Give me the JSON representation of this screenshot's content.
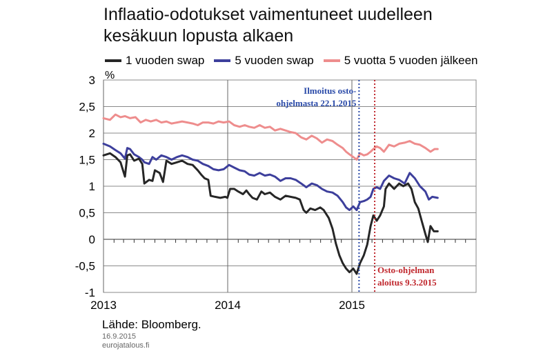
{
  "header": {
    "title_line1": "Inflaatio-odotukset vaimentuneet uudelleen",
    "title_line2": "kesäkuun lopusta alkaen"
  },
  "footer": {
    "source": "Lähde: Bloomberg.",
    "date": "16.9.2015",
    "site": "eurojatalous.fi"
  },
  "chart_data": {
    "type": "line",
    "title": "Inflaatio-odotukset vaimentuneet uudelleen kesäkuun lopusta alkaen",
    "ylabel": "%",
    "ylim": [
      -1,
      3
    ],
    "yticks": [
      -1,
      -0.5,
      0,
      0.5,
      1,
      1.5,
      2,
      2.5,
      3
    ],
    "ytick_labels": [
      "-1",
      "-0,5",
      "0",
      "0,5",
      "1",
      "1,5",
      "2",
      "2,5",
      "3"
    ],
    "xlim": [
      "2013-01-01",
      "2016-01-01"
    ],
    "xtick_labels": [
      "2013",
      "2014",
      "2015"
    ],
    "legend_position": "top",
    "grid": "horizontal",
    "series": [
      {
        "name": "1 vuoden swap",
        "color": "#262626",
        "points": [
          [
            "2013-01-01",
            1.58
          ],
          [
            "2013-01-20",
            1.62
          ],
          [
            "2013-02-05",
            1.55
          ],
          [
            "2013-02-20",
            1.45
          ],
          [
            "2013-03-05",
            1.18
          ],
          [
            "2013-03-12",
            1.58
          ],
          [
            "2013-03-20",
            1.6
          ],
          [
            "2013-04-01",
            1.48
          ],
          [
            "2013-04-15",
            1.52
          ],
          [
            "2013-04-25",
            1.42
          ],
          [
            "2013-05-01",
            1.05
          ],
          [
            "2013-05-15",
            1.12
          ],
          [
            "2013-05-25",
            1.1
          ],
          [
            "2013-06-01",
            1.3
          ],
          [
            "2013-06-15",
            1.25
          ],
          [
            "2013-06-25",
            1.08
          ],
          [
            "2013-07-05",
            1.48
          ],
          [
            "2013-07-20",
            1.42
          ],
          [
            "2013-08-05",
            1.45
          ],
          [
            "2013-08-20",
            1.48
          ],
          [
            "2013-09-05",
            1.42
          ],
          [
            "2013-09-20",
            1.4
          ],
          [
            "2013-10-05",
            1.3
          ],
          [
            "2013-10-15",
            1.22
          ],
          [
            "2013-10-25",
            1.15
          ],
          [
            "2013-11-05",
            1.12
          ],
          [
            "2013-11-12",
            0.82
          ],
          [
            "2013-11-25",
            0.8
          ],
          [
            "2013-12-10",
            0.78
          ],
          [
            "2013-12-25",
            0.8
          ],
          [
            "2013-12-31",
            0.78
          ],
          [
            "2014-01-08",
            0.95
          ],
          [
            "2014-01-20",
            0.95
          ],
          [
            "2014-02-01",
            0.9
          ],
          [
            "2014-02-15",
            0.85
          ],
          [
            "2014-02-25",
            0.92
          ],
          [
            "2014-03-05",
            0.85
          ],
          [
            "2014-03-15",
            0.78
          ],
          [
            "2014-03-28",
            0.75
          ],
          [
            "2014-04-10",
            0.9
          ],
          [
            "2014-04-20",
            0.85
          ],
          [
            "2014-05-05",
            0.88
          ],
          [
            "2014-05-20",
            0.8
          ],
          [
            "2014-06-05",
            0.75
          ],
          [
            "2014-06-20",
            0.82
          ],
          [
            "2014-07-05",
            0.8
          ],
          [
            "2014-07-20",
            0.78
          ],
          [
            "2014-08-01",
            0.75
          ],
          [
            "2014-08-12",
            0.55
          ],
          [
            "2014-08-20",
            0.5
          ],
          [
            "2014-09-01",
            0.58
          ],
          [
            "2014-09-15",
            0.55
          ],
          [
            "2014-09-30",
            0.6
          ],
          [
            "2014-10-10",
            0.55
          ],
          [
            "2014-10-25",
            0.4
          ],
          [
            "2014-11-05",
            0.2
          ],
          [
            "2014-11-15",
            -0.08
          ],
          [
            "2014-11-25",
            -0.3
          ],
          [
            "2014-12-05",
            -0.45
          ],
          [
            "2014-12-15",
            -0.55
          ],
          [
            "2014-12-25",
            -0.62
          ],
          [
            "2015-01-05",
            -0.55
          ],
          [
            "2015-01-15",
            -0.65
          ],
          [
            "2015-01-25",
            -0.45
          ],
          [
            "2015-02-05",
            -0.3
          ],
          [
            "2015-02-15",
            -0.1
          ],
          [
            "2015-02-25",
            0.25
          ],
          [
            "2015-03-05",
            0.45
          ],
          [
            "2015-03-15",
            0.35
          ],
          [
            "2015-03-25",
            0.45
          ],
          [
            "2015-04-05",
            0.62
          ],
          [
            "2015-04-10",
            0.95
          ],
          [
            "2015-04-20",
            1.05
          ],
          [
            "2015-05-05",
            0.95
          ],
          [
            "2015-05-20",
            1.05
          ],
          [
            "2015-06-01",
            1.0
          ],
          [
            "2015-06-15",
            1.05
          ],
          [
            "2015-06-25",
            0.95
          ],
          [
            "2015-07-05",
            0.7
          ],
          [
            "2015-07-15",
            0.58
          ],
          [
            "2015-07-25",
            0.35
          ],
          [
            "2015-08-05",
            0.1
          ],
          [
            "2015-08-12",
            -0.05
          ],
          [
            "2015-08-20",
            0.25
          ],
          [
            "2015-08-30",
            0.15
          ],
          [
            "2015-09-10",
            0.15
          ]
        ]
      },
      {
        "name": "5 vuoden swap",
        "color": "#3d3f9c",
        "points": [
          [
            "2013-01-01",
            1.8
          ],
          [
            "2013-01-20",
            1.75
          ],
          [
            "2013-02-05",
            1.68
          ],
          [
            "2013-02-20",
            1.62
          ],
          [
            "2013-03-05",
            1.52
          ],
          [
            "2013-03-12",
            1.72
          ],
          [
            "2013-03-20",
            1.7
          ],
          [
            "2013-04-01",
            1.6
          ],
          [
            "2013-04-15",
            1.55
          ],
          [
            "2013-04-25",
            1.5
          ],
          [
            "2013-05-01",
            1.45
          ],
          [
            "2013-05-15",
            1.42
          ],
          [
            "2013-05-25",
            1.55
          ],
          [
            "2013-06-05",
            1.5
          ],
          [
            "2013-06-20",
            1.58
          ],
          [
            "2013-07-05",
            1.55
          ],
          [
            "2013-07-20",
            1.5
          ],
          [
            "2013-08-05",
            1.55
          ],
          [
            "2013-08-20",
            1.58
          ],
          [
            "2013-09-05",
            1.55
          ],
          [
            "2013-09-20",
            1.5
          ],
          [
            "2013-10-05",
            1.48
          ],
          [
            "2013-10-20",
            1.42
          ],
          [
            "2013-11-05",
            1.38
          ],
          [
            "2013-11-20",
            1.32
          ],
          [
            "2013-12-05",
            1.3
          ],
          [
            "2013-12-20",
            1.32
          ],
          [
            "2014-01-05",
            1.4
          ],
          [
            "2014-01-20",
            1.35
          ],
          [
            "2014-02-05",
            1.3
          ],
          [
            "2014-02-20",
            1.28
          ],
          [
            "2014-03-05",
            1.22
          ],
          [
            "2014-03-20",
            1.2
          ],
          [
            "2014-04-05",
            1.25
          ],
          [
            "2014-04-20",
            1.2
          ],
          [
            "2014-05-05",
            1.22
          ],
          [
            "2014-05-20",
            1.18
          ],
          [
            "2014-06-05",
            1.1
          ],
          [
            "2014-06-20",
            1.15
          ],
          [
            "2014-07-05",
            1.15
          ],
          [
            "2014-07-20",
            1.12
          ],
          [
            "2014-08-05",
            1.05
          ],
          [
            "2014-08-20",
            0.98
          ],
          [
            "2014-09-05",
            1.05
          ],
          [
            "2014-09-20",
            1.02
          ],
          [
            "2014-10-05",
            0.95
          ],
          [
            "2014-10-20",
            0.9
          ],
          [
            "2014-11-05",
            0.88
          ],
          [
            "2014-11-20",
            0.82
          ],
          [
            "2014-12-05",
            0.7
          ],
          [
            "2014-12-15",
            0.6
          ],
          [
            "2014-12-25",
            0.55
          ],
          [
            "2015-01-05",
            0.62
          ],
          [
            "2015-01-15",
            0.55
          ],
          [
            "2015-01-25",
            0.7
          ],
          [
            "2015-02-05",
            0.72
          ],
          [
            "2015-02-15",
            0.75
          ],
          [
            "2015-02-25",
            0.8
          ],
          [
            "2015-03-05",
            0.95
          ],
          [
            "2015-03-15",
            0.98
          ],
          [
            "2015-03-25",
            0.95
          ],
          [
            "2015-04-05",
            1.1
          ],
          [
            "2015-04-20",
            1.2
          ],
          [
            "2015-05-05",
            1.15
          ],
          [
            "2015-05-20",
            1.12
          ],
          [
            "2015-06-05",
            1.05
          ],
          [
            "2015-06-20",
            1.25
          ],
          [
            "2015-07-05",
            1.15
          ],
          [
            "2015-07-20",
            1.0
          ],
          [
            "2015-08-05",
            0.9
          ],
          [
            "2015-08-15",
            0.75
          ],
          [
            "2015-08-25",
            0.8
          ],
          [
            "2015-09-10",
            0.78
          ]
        ]
      },
      {
        "name": "5 vuotta 5 vuoden jälkeen",
        "color": "#ee8d8d",
        "points": [
          [
            "2013-01-01",
            2.28
          ],
          [
            "2013-01-20",
            2.25
          ],
          [
            "2013-02-05",
            2.35
          ],
          [
            "2013-02-20",
            2.3
          ],
          [
            "2013-03-05",
            2.32
          ],
          [
            "2013-03-20",
            2.28
          ],
          [
            "2013-04-05",
            2.3
          ],
          [
            "2013-04-20",
            2.2
          ],
          [
            "2013-05-05",
            2.25
          ],
          [
            "2013-05-20",
            2.22
          ],
          [
            "2013-06-05",
            2.25
          ],
          [
            "2013-06-20",
            2.2
          ],
          [
            "2013-07-05",
            2.22
          ],
          [
            "2013-07-20",
            2.18
          ],
          [
            "2013-08-05",
            2.2
          ],
          [
            "2013-08-20",
            2.22
          ],
          [
            "2013-09-05",
            2.2
          ],
          [
            "2013-09-20",
            2.18
          ],
          [
            "2013-10-05",
            2.15
          ],
          [
            "2013-10-20",
            2.2
          ],
          [
            "2013-11-05",
            2.2
          ],
          [
            "2013-11-20",
            2.18
          ],
          [
            "2013-12-05",
            2.22
          ],
          [
            "2013-12-20",
            2.2
          ],
          [
            "2014-01-05",
            2.22
          ],
          [
            "2014-01-20",
            2.15
          ],
          [
            "2014-02-05",
            2.12
          ],
          [
            "2014-02-20",
            2.15
          ],
          [
            "2014-03-05",
            2.12
          ],
          [
            "2014-03-20",
            2.1
          ],
          [
            "2014-04-05",
            2.15
          ],
          [
            "2014-04-20",
            2.1
          ],
          [
            "2014-05-05",
            2.12
          ],
          [
            "2014-05-20",
            2.05
          ],
          [
            "2014-06-05",
            2.08
          ],
          [
            "2014-06-20",
            2.05
          ],
          [
            "2014-07-05",
            2.02
          ],
          [
            "2014-07-20",
            2.0
          ],
          [
            "2014-08-05",
            1.92
          ],
          [
            "2014-08-20",
            1.88
          ],
          [
            "2014-09-05",
            1.95
          ],
          [
            "2014-09-20",
            1.9
          ],
          [
            "2014-10-05",
            1.82
          ],
          [
            "2014-10-20",
            1.88
          ],
          [
            "2014-11-05",
            1.85
          ],
          [
            "2014-11-20",
            1.78
          ],
          [
            "2014-12-05",
            1.72
          ],
          [
            "2014-12-15",
            1.65
          ],
          [
            "2014-12-25",
            1.6
          ],
          [
            "2015-01-05",
            1.55
          ],
          [
            "2015-01-15",
            1.5
          ],
          [
            "2015-01-25",
            1.62
          ],
          [
            "2015-02-05",
            1.58
          ],
          [
            "2015-02-15",
            1.6
          ],
          [
            "2015-02-25",
            1.65
          ],
          [
            "2015-03-05",
            1.7
          ],
          [
            "2015-03-15",
            1.75
          ],
          [
            "2015-03-25",
            1.72
          ],
          [
            "2015-04-05",
            1.65
          ],
          [
            "2015-04-20",
            1.78
          ],
          [
            "2015-05-05",
            1.75
          ],
          [
            "2015-05-20",
            1.8
          ],
          [
            "2015-06-05",
            1.82
          ],
          [
            "2015-06-20",
            1.85
          ],
          [
            "2015-07-05",
            1.8
          ],
          [
            "2015-07-20",
            1.78
          ],
          [
            "2015-08-05",
            1.72
          ],
          [
            "2015-08-20",
            1.65
          ],
          [
            "2015-09-01",
            1.7
          ],
          [
            "2015-09-10",
            1.7
          ]
        ]
      }
    ],
    "annotations": [
      {
        "date": "2015-01-22",
        "color": "#2a4aa8",
        "line_style": "dotted",
        "label_line1": "Ilmoitus osto-",
        "label_line2": "ohjelmasta 22.1.2015",
        "label_position": "top-left"
      },
      {
        "date": "2015-03-09",
        "color": "#c0272d",
        "line_style": "dotted",
        "label_line1": "Osto-ohjelman",
        "label_line2": "aloitus 9.3.2015",
        "label_position": "bottom-right"
      }
    ]
  }
}
